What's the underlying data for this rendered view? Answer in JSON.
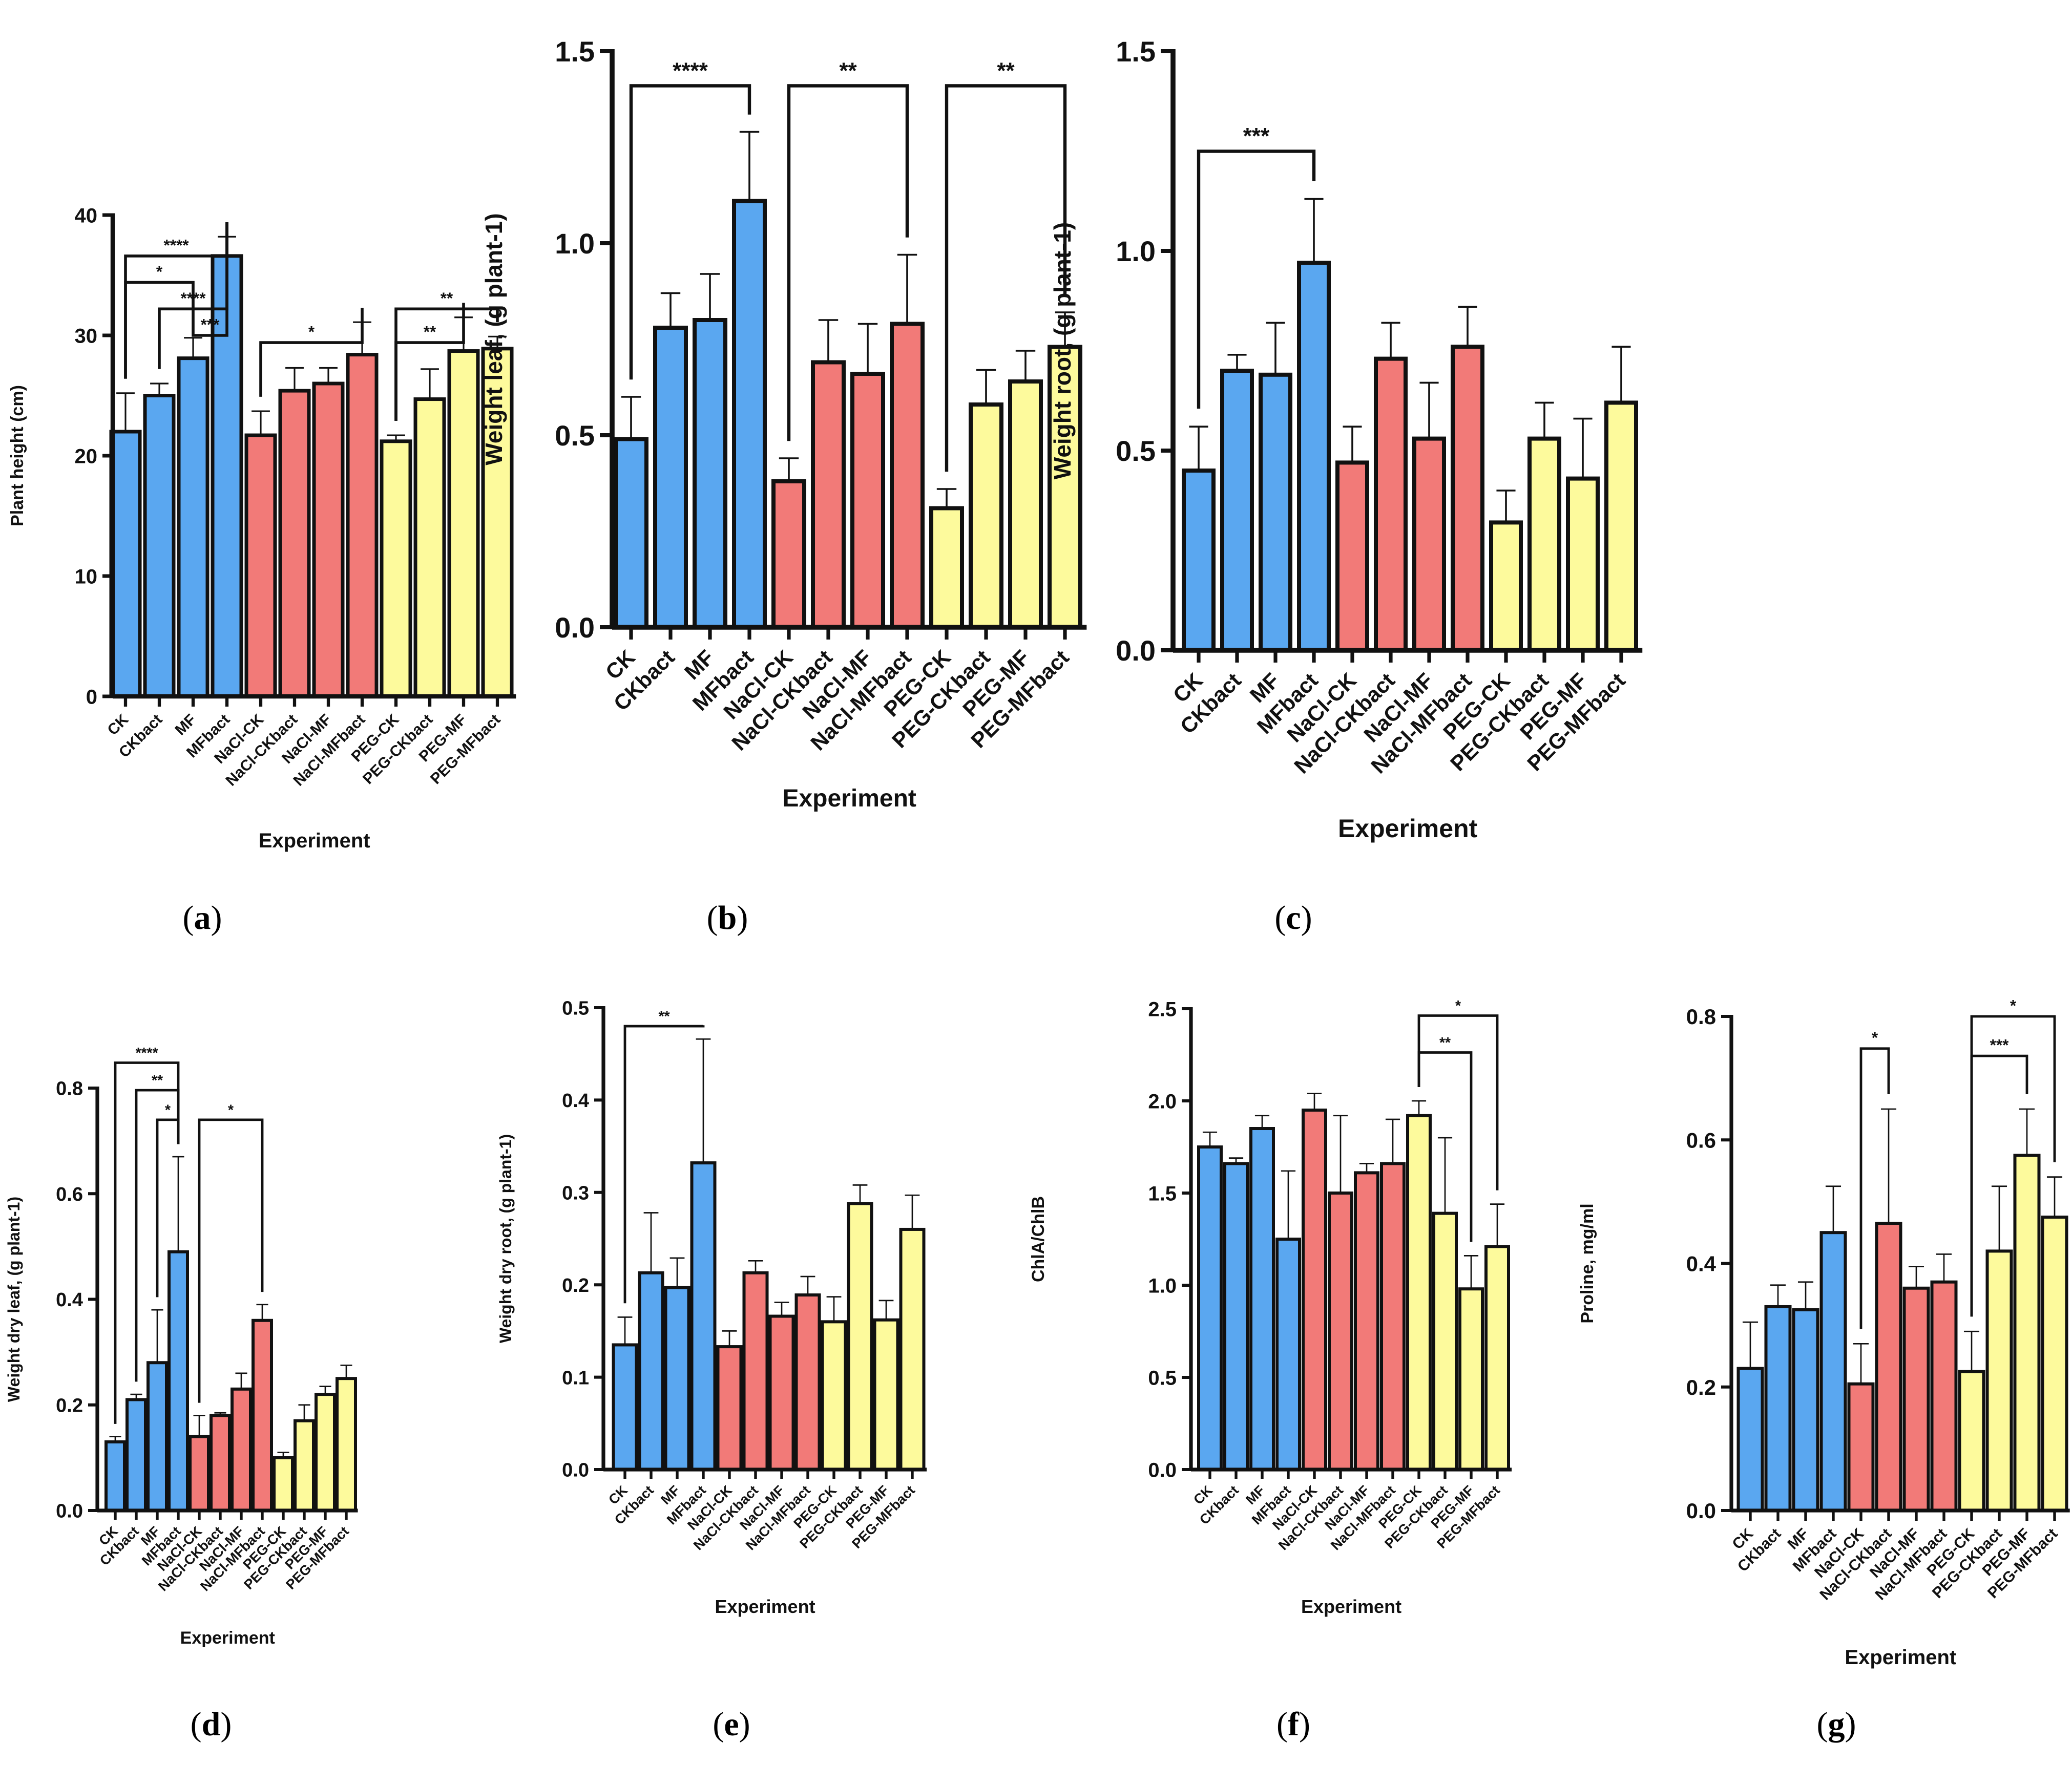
{
  "colors": {
    "blue": "#5aa7f0",
    "red": "#f27a78",
    "yellow": "#fdfa9c",
    "stroke": "#111111"
  },
  "panel_labels": [
    "(a)",
    "(b)",
    "(c)",
    "(d)",
    "(e)",
    "(f)",
    "(g)"
  ],
  "chart_data": [
    {
      "id": "a",
      "type": "bar",
      "title": "",
      "xlabel": "Experiment",
      "ylabel": "Plant height (cm)",
      "ylim": [
        0,
        40
      ],
      "yticks": [
        "0",
        "10",
        "20",
        "30",
        "40"
      ],
      "ytick_values": [
        0,
        10,
        20,
        30,
        40
      ],
      "categories": [
        "CK",
        "CKbact",
        "MF",
        "MFbact",
        "NaCl-CK",
        "NaCl-CKbact",
        "NaCl-MF",
        "NaCl-MFbact",
        "PEG-CK",
        "PEG-CKbact",
        "PEG-MF",
        "PEG-MFbact"
      ],
      "values": [
        22.0,
        25.0,
        28.1,
        36.6,
        21.7,
        25.4,
        26.0,
        28.4,
        21.2,
        24.7,
        28.7,
        28.9
      ],
      "errors": [
        3.2,
        1.0,
        1.7,
        1.6,
        2.0,
        1.9,
        1.3,
        2.7,
        0.5,
        2.5,
        2.8,
        1.0
      ],
      "groups": [
        "blue",
        "blue",
        "blue",
        "blue",
        "red",
        "red",
        "red",
        "red",
        "yellow",
        "yellow",
        "yellow",
        "yellow"
      ],
      "significance": [
        {
          "from": 0,
          "to": 3,
          "label": "****",
          "level": 0.915
        },
        {
          "from": 0,
          "to": 2,
          "label": "*",
          "level": 0.86
        },
        {
          "from": 1,
          "to": 3,
          "label": "****",
          "level": 0.805
        },
        {
          "from": 2,
          "to": 3,
          "label": "***",
          "level": 0.75
        },
        {
          "from": 4,
          "to": 7,
          "label": "*",
          "level": 0.735
        },
        {
          "from": 8,
          "to": 11,
          "label": "**",
          "level": 0.805
        },
        {
          "from": 8,
          "to": 10,
          "label": "**",
          "level": 0.735
        }
      ]
    },
    {
      "id": "b",
      "type": "bar",
      "title": "",
      "xlabel": "Experiment",
      "ylabel": "Weight leaf, (g plant-1)",
      "ylim": [
        0,
        1.5
      ],
      "yticks": [
        "0.0",
        "0.5",
        "1.0",
        "1.5"
      ],
      "ytick_values": [
        0,
        0.5,
        1.0,
        1.5
      ],
      "categories": [
        "CK",
        "CKbact",
        "MF",
        "MFbact",
        "NaCl-CK",
        "NaCl-CKbact",
        "NaCl-MF",
        "NaCl-MFbact",
        "PEG-CK",
        "PEG-CKbact",
        "PEG-MF",
        "PEG-MFbact"
      ],
      "values": [
        0.49,
        0.78,
        0.8,
        1.11,
        0.38,
        0.69,
        0.66,
        0.79,
        0.31,
        0.58,
        0.64,
        0.73
      ],
      "errors": [
        0.11,
        0.09,
        0.12,
        0.18,
        0.06,
        0.11,
        0.13,
        0.18,
        0.05,
        0.09,
        0.08,
        0.09
      ],
      "groups": [
        "blue",
        "blue",
        "blue",
        "blue",
        "red",
        "red",
        "red",
        "red",
        "yellow",
        "yellow",
        "yellow",
        "yellow"
      ],
      "significance": [
        {
          "from": 0,
          "to": 3,
          "label": "****",
          "level": 0.94
        },
        {
          "from": 4,
          "to": 7,
          "label": "**",
          "level": 0.94
        },
        {
          "from": 8,
          "to": 11,
          "label": "**",
          "level": 0.94
        }
      ]
    },
    {
      "id": "c",
      "type": "bar",
      "title": "",
      "xlabel": "Experiment",
      "ylabel": "Weight root, (g plant-1)",
      "ylim": [
        0,
        1.5
      ],
      "yticks": [
        "0.0",
        "0.5",
        "1.0",
        "1.5"
      ],
      "ytick_values": [
        0,
        0.5,
        1.0,
        1.5
      ],
      "categories": [
        "CK",
        "CKbact",
        "MF",
        "MFbact",
        "NaCl-CK",
        "NaCl-CKbact",
        "NaCl-MF",
        "NaCl-MFbact",
        "PEG-CK",
        "PEG-CKbact",
        "PEG-MF",
        "PEG-MFbact"
      ],
      "values": [
        0.45,
        0.7,
        0.69,
        0.97,
        0.47,
        0.73,
        0.53,
        0.76,
        0.32,
        0.53,
        0.43,
        0.62
      ],
      "errors": [
        0.11,
        0.04,
        0.13,
        0.16,
        0.09,
        0.09,
        0.14,
        0.1,
        0.08,
        0.09,
        0.15,
        0.14
      ],
      "groups": [
        "blue",
        "blue",
        "blue",
        "blue",
        "red",
        "red",
        "red",
        "red",
        "yellow",
        "yellow",
        "yellow",
        "yellow"
      ],
      "significance": [
        {
          "from": 0,
          "to": 3,
          "label": "***",
          "level": 0.833
        }
      ]
    },
    {
      "id": "d",
      "type": "bar",
      "title": "",
      "xlabel": "Experiment",
      "ylabel": "Weight dry leaf, (g plant-1)",
      "ylim": [
        0,
        0.8
      ],
      "yticks": [
        "0.0",
        "0.2",
        "0.4",
        "0.6",
        "0.8"
      ],
      "ytick_values": [
        0,
        0.2,
        0.4,
        0.6,
        0.8
      ],
      "categories": [
        "CK",
        "CKbact",
        "MF",
        "MFbact",
        "NaCl-CK",
        "NaCl-CKbact",
        "NaCl-MF",
        "NaCl-MFbact",
        "PEG-CK",
        "PEG-CKbact",
        "PEG-MF",
        "PEG-MFbact"
      ],
      "values": [
        0.13,
        0.21,
        0.28,
        0.49,
        0.14,
        0.18,
        0.23,
        0.36,
        0.1,
        0.17,
        0.22,
        0.25
      ],
      "errors": [
        0.01,
        0.01,
        0.1,
        0.18,
        0.04,
        0.005,
        0.03,
        0.03,
        0.01,
        0.03,
        0.015,
        0.025
      ],
      "groups": [
        "blue",
        "blue",
        "blue",
        "blue",
        "red",
        "red",
        "red",
        "red",
        "yellow",
        "yellow",
        "yellow",
        "yellow"
      ],
      "significance": [
        {
          "from": 0,
          "to": 3,
          "label": "****",
          "level": 1.06
        },
        {
          "from": 1,
          "to": 3,
          "label": "**",
          "level": 0.995
        },
        {
          "from": 2,
          "to": 3,
          "label": "*",
          "level": 0.925
        },
        {
          "from": 4,
          "to": 7,
          "label": "*",
          "level": 0.925
        }
      ]
    },
    {
      "id": "e",
      "type": "bar",
      "title": "",
      "xlabel": "Experiment",
      "ylabel": "Weight dry root, (g plant-1)",
      "ylim": [
        0,
        0.5
      ],
      "yticks": [
        "0.0",
        "0.1",
        "0.2",
        "0.3",
        "0.4",
        "0.5"
      ],
      "ytick_values": [
        0,
        0.1,
        0.2,
        0.3,
        0.4,
        0.5
      ],
      "categories": [
        "CK",
        "CKbact",
        "MF",
        "MFbact",
        "NaCl-CK",
        "NaCl-CKbact",
        "NaCl-MF",
        "NaCl-MFbact",
        "PEG-CK",
        "PEG-CKbact",
        "PEG-MF",
        "PEG-MFbact"
      ],
      "values": [
        0.135,
        0.213,
        0.197,
        0.332,
        0.133,
        0.213,
        0.166,
        0.189,
        0.16,
        0.288,
        0.162,
        0.26
      ],
      "errors": [
        0.03,
        0.065,
        0.032,
        0.134,
        0.017,
        0.013,
        0.015,
        0.02,
        0.027,
        0.02,
        0.021,
        0.037
      ],
      "groups": [
        "blue",
        "blue",
        "blue",
        "blue",
        "red",
        "red",
        "red",
        "red",
        "yellow",
        "yellow",
        "yellow",
        "yellow"
      ],
      "significance": [
        {
          "from": 0,
          "to": 3,
          "label": "**",
          "level": 0.96
        }
      ]
    },
    {
      "id": "f",
      "type": "bar",
      "title": "",
      "xlabel": "Experiment",
      "ylabel": "ChlA/ChlB",
      "ylim": [
        0,
        2.5
      ],
      "yticks": [
        "0.0",
        "0.5",
        "1.0",
        "1.5",
        "2.0",
        "2.5"
      ],
      "ytick_values": [
        0,
        0.5,
        1.0,
        1.5,
        2.0,
        2.5
      ],
      "categories": [
        "CK",
        "CKbact",
        "MF",
        "MFbact",
        "NaCl-CK",
        "NaCl-CKbact",
        "NaCl-MF",
        "NaCl-MFbact",
        "PEG-CK",
        "PEG-CKbact",
        "PEG-MF",
        "PEG-MFbact"
      ],
      "values": [
        1.75,
        1.66,
        1.85,
        1.25,
        1.95,
        1.5,
        1.61,
        1.66,
        1.92,
        1.39,
        0.98,
        1.21
      ],
      "errors": [
        0.08,
        0.03,
        0.07,
        0.37,
        0.09,
        0.42,
        0.05,
        0.24,
        0.08,
        0.41,
        0.18,
        0.23
      ],
      "groups": [
        "blue",
        "blue",
        "blue",
        "blue",
        "red",
        "red",
        "red",
        "red",
        "yellow",
        "yellow",
        "yellow",
        "yellow"
      ],
      "significance": [
        {
          "from": 8,
          "to": 11,
          "label": "*",
          "level": 0.985
        },
        {
          "from": 8,
          "to": 10,
          "label": "**",
          "level": 0.905
        }
      ]
    },
    {
      "id": "g",
      "type": "bar",
      "title": "",
      "xlabel": "Experiment",
      "ylabel": "Proline, mg/ml",
      "ylim": [
        0,
        0.8
      ],
      "yticks": [
        "0.0",
        "0.2",
        "0.4",
        "0.6",
        "0.8"
      ],
      "ytick_values": [
        0,
        0.2,
        0.4,
        0.6,
        0.8
      ],
      "categories": [
        "CK",
        "CKbact",
        "MF",
        "MFbact",
        "NaCl-CK",
        "NaCl-CKbact",
        "NaCl-MF",
        "NaCl-MFbact",
        "PEG-CK",
        "PEG-CKbact",
        "PEG-MF",
        "PEG-MFbact"
      ],
      "values": [
        0.23,
        0.33,
        0.325,
        0.45,
        0.205,
        0.465,
        0.36,
        0.37,
        0.225,
        0.42,
        0.575,
        0.475
      ],
      "errors": [
        0.075,
        0.035,
        0.045,
        0.075,
        0.065,
        0.185,
        0.035,
        0.045,
        0.065,
        0.105,
        0.075,
        0.065
      ],
      "groups": [
        "blue",
        "blue",
        "blue",
        "blue",
        "red",
        "red",
        "red",
        "red",
        "yellow",
        "yellow",
        "yellow",
        "yellow"
      ],
      "significance": [
        {
          "from": 4,
          "to": 5,
          "label": "*",
          "level": 0.935
        },
        {
          "from": 8,
          "to": 11,
          "label": "*",
          "level": 1.0
        },
        {
          "from": 8,
          "to": 10,
          "label": "***",
          "level": 0.92
        }
      ]
    }
  ]
}
